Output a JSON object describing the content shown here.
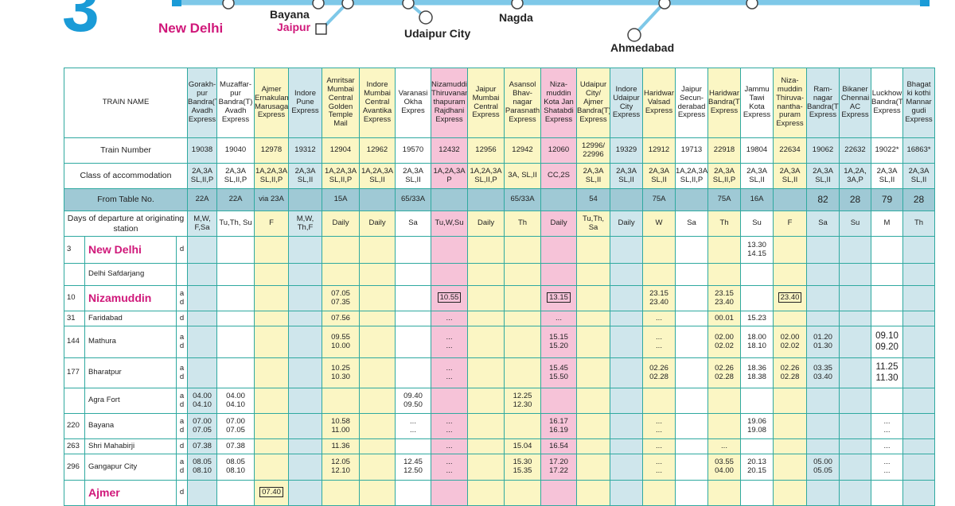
{
  "map": {
    "table_number": "3",
    "stations": {
      "new_delhi": "New Delhi",
      "bayana": "Bayana",
      "jaipur": "Jaipur",
      "udaipur_city": "Udaipur City",
      "nagda": "Nagda",
      "ahmedabad": "Ahmedabad"
    },
    "colors": {
      "route": "#7ec8e8",
      "accent": "#1a9bd7",
      "pink": "#d0187a"
    }
  },
  "table": {
    "header_label": "TRAIN NAME",
    "row_labels": {
      "train_number": "Train Number",
      "class": "Class of accommodation",
      "from_table": "From Table No.",
      "days": "Days of departure at originating station"
    },
    "trains": [
      {
        "name": "Gorakh-pur Bandra(T) Avadh Express",
        "number": "19038",
        "class": "2A,3A SL,II,P",
        "from": "22A",
        "days": "M,W, F,Sa",
        "color": "b"
      },
      {
        "name": "Muzaffar-pur Bandra(T) Avadh Express",
        "number": "19040",
        "class": "2A,3A SL,II,P",
        "from": "22A",
        "days": "Tu,Th, Su",
        "color": "w"
      },
      {
        "name": "Ajmer Ernakulam Marusagar Express",
        "number": "12978",
        "class": "1A,2A,3A SL,II,P",
        "from": "via 23A",
        "days": "F",
        "color": "y"
      },
      {
        "name": "Indore Pune Express",
        "number": "19312",
        "class": "2A,3A SL,II",
        "from": "",
        "days": "M,W, Th,F",
        "color": "b"
      },
      {
        "name": "Amritsar Mumbai Central Golden Temple Mail",
        "number": "12904",
        "class": "1A,2A,3A SL,II,P",
        "from": "15A",
        "days": "Daily",
        "color": "y"
      },
      {
        "name": "Indore Mumbai Central Avantika Express",
        "number": "12962",
        "class": "1A,2A,3A SL,II",
        "from": "",
        "days": "Daily",
        "color": "y"
      },
      {
        "name": "Varanasi Okha Expres",
        "number": "19570",
        "class": "2A,3A SL,II",
        "from": "65/33A",
        "days": "Sa",
        "color": "w"
      },
      {
        "name": "Nizamuddin Thiruvanan-thapuram Rajdhani Express",
        "number": "12432",
        "class": "1A,2A,3A P",
        "from": "",
        "days": "Tu,W,Su",
        "color": "p"
      },
      {
        "name": "Jaipur Mumbai Central Express",
        "number": "12956",
        "class": "1A,2A,3A SL,II,P",
        "from": "",
        "days": "Daily",
        "color": "y"
      },
      {
        "name": "Asansol Bhav-nagar Parasnath Express",
        "number": "12942",
        "class": "3A, SL,II",
        "from": "65/33A",
        "days": "Th",
        "color": "y"
      },
      {
        "name": "Niza-muddin Kota Jan Shatabdi Express",
        "number": "12060",
        "class": "CC,2S",
        "from": "",
        "days": "Daily",
        "color": "p"
      },
      {
        "name": "Udaipur City/ Ajmer Bandra(T) Express",
        "number": "12996/ 22996",
        "class": "2A,3A SL,II",
        "from": "54",
        "days": "Tu,Th, Sa",
        "color": "y"
      },
      {
        "name": "Indore Udaipur City Express",
        "number": "19329",
        "class": "2A,3A SL,II",
        "from": "",
        "days": "Daily",
        "color": "b"
      },
      {
        "name": "Haridwar Valsad Express",
        "number": "12912",
        "class": "2A,3A SL,II",
        "from": "75A",
        "days": "W",
        "color": "y"
      },
      {
        "name": "Jaipur Secun-derabad Express",
        "number": "19713",
        "class": "1A,2A,3A SL,II,P",
        "from": "",
        "days": "Sa",
        "color": "w"
      },
      {
        "name": "Haridwar Bandra(T) Express",
        "number": "22918",
        "class": "2A,3A SL,II,P",
        "from": "75A",
        "days": "Th",
        "color": "y"
      },
      {
        "name": "Jammu Tawi Kota Express",
        "number": "19804",
        "class": "2A,3A SL,II",
        "from": "16A",
        "days": "Su",
        "color": "w"
      },
      {
        "name": "Niza-muddin Thiruva-nantha-puram Express",
        "number": "22634",
        "class": "2A,3A SL,II",
        "from": "",
        "days": "F",
        "color": "y"
      },
      {
        "name": "Ram-nagar Bandra(T) Express",
        "number": "19062",
        "class": "2A,3A SL,II",
        "from": "82",
        "days": "Sa",
        "color": "b"
      },
      {
        "name": "Bikaner Chennai AC Express",
        "number": "22632",
        "class": "1A,2A, 3A,P",
        "from": "28",
        "days": "Su",
        "color": "b"
      },
      {
        "name": "Luckhow Bandra(T) Express",
        "number": "19022*",
        "class": "2A,3A SL,II",
        "from": "79",
        "days": "M",
        "color": "w"
      },
      {
        "name": "Bhagat ki kothi Mannar gudi Express",
        "number": "16863*",
        "class": "2A,3A SL,II",
        "from": "28",
        "days": "Th",
        "color": "b"
      }
    ],
    "stations": [
      {
        "km": "3",
        "name": "New Delhi",
        "major": true,
        "ad": "d",
        "h": 34,
        "cells": {
          "16": "13.30 14.15"
        }
      },
      {
        "km": "",
        "name": "Delhi Safdarjang",
        "major": false,
        "ad": "",
        "h": 28,
        "cells": {}
      },
      {
        "km": "10",
        "name": "Nizamuddin",
        "major": true,
        "ad": "a d",
        "h": 32,
        "cells": {
          "4": "07.05 07.35",
          "7": "[10.55]",
          "10": "[13.15]",
          "13": "23.15 23.40",
          "15": "23.15 23.40",
          "17": "[23.40]"
        }
      },
      {
        "km": "31",
        "name": "Faridabad",
        "major": false,
        "ad": "d",
        "h": 19,
        "cells": {
          "4": "07.56",
          "7": "...",
          "10": "...",
          "13": "...",
          "15": "00.01",
          "16": "15.23"
        }
      },
      {
        "km": "144",
        "name": "Mathura",
        "major": false,
        "ad": "a d",
        "h": 40,
        "cells": {
          "4": "09.55 10.00",
          "7": "... ...",
          "10": "15.15 15.20",
          "13": "... ...",
          "15": "02.00 02.02",
          "16": "18.00 18.10",
          "17": "02.00 02.02",
          "18": "01.20 01.30",
          "20": "09.10 09.20"
        }
      },
      {
        "km": "177",
        "name": "Bharatpur",
        "major": false,
        "ad": "a d",
        "h": 38,
        "cells": {
          "4": "10.25 10.30",
          "7": "... ...",
          "10": "15.45 15.50",
          "13": "02.26 02.28",
          "15": "02.26 02.28",
          "16": "18.36 18.38",
          "17": "02.26 02.28",
          "18": "03.35 03.40",
          "20": "11.25 11.30"
        }
      },
      {
        "km": "",
        "name": "Agra Fort",
        "major": false,
        "ad": "a d",
        "h": 32,
        "cells": {
          "0": "04.00 04.10",
          "1": "04.00 04.10",
          "6": "09.40 09.50",
          "9": "12.25 12.30"
        }
      },
      {
        "km": "220",
        "name": "Bayana",
        "major": false,
        "ad": "a d",
        "h": 32,
        "cells": {
          "0": "07.00 07.05",
          "1": "07.00 07.05",
          "4": "10.58 11.00",
          "6": "... ...",
          "7": "... ...",
          "10": "16.17 16.19",
          "13": "... ...",
          "16": "19.06 19.08",
          "20": "... ..."
        }
      },
      {
        "km": "263",
        "name": "Shri Mahabirji",
        "major": false,
        "ad": "d",
        "h": 19,
        "cells": {
          "0": "07.38",
          "1": "07.38",
          "4": "11.36",
          "7": "...",
          "9": "15.04",
          "10": "16.54",
          "13": "...",
          "15": "...",
          "20": "..."
        }
      },
      {
        "km": "296",
        "name": "Gangapur City",
        "major": false,
        "ad": "a d",
        "h": 33,
        "cells": {
          "0": "08.05 08.10",
          "1": "08.05 08.10",
          "4": "12.05 12.10",
          "6": "12.45 12.50",
          "7": "... ...",
          "9": "15.30 15.35",
          "10": "17.20 17.22",
          "13": "... ...",
          "15": "03.55 04.00",
          "16": "20.13 20.15",
          "18": "05.00 05.05",
          "20": "... ..."
        }
      },
      {
        "km": "",
        "name": "Ajmer",
        "major": true,
        "ad": "d",
        "h": 32,
        "cells": {
          "2": "[07.40]"
        }
      }
    ]
  }
}
